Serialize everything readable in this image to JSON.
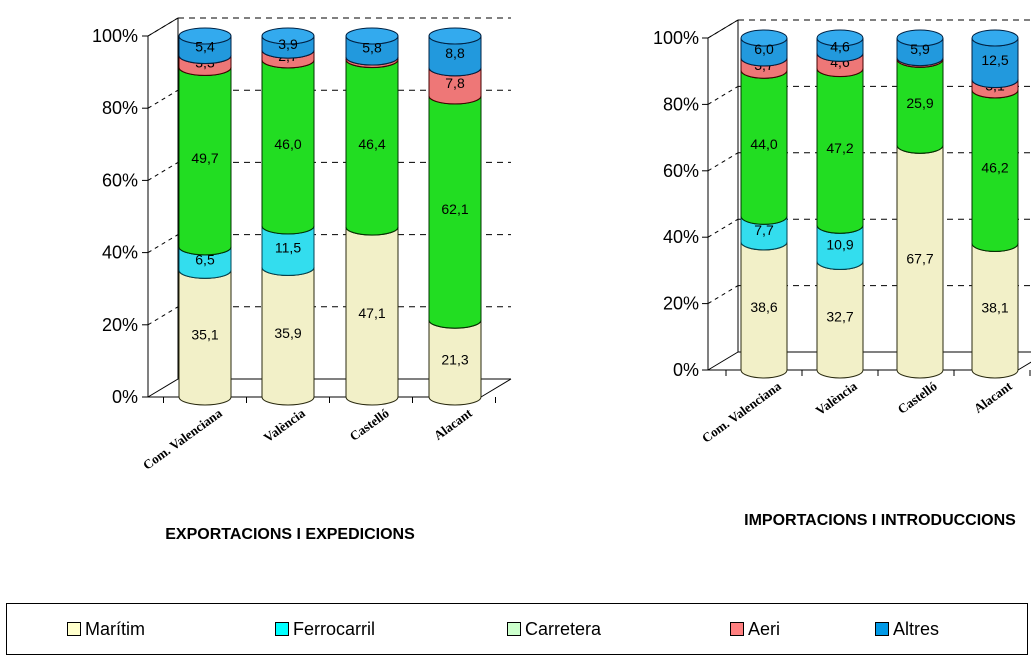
{
  "chart_data": [
    {
      "type": "bar",
      "stacked": "percent",
      "title": "EXPORTACIONS I EXPEDICIONS",
      "categories": [
        "Com. Valenciana",
        "València",
        "Castelló",
        "Alacant"
      ],
      "ylim": [
        0,
        100
      ],
      "yticks": [
        "0%",
        "20%",
        "40%",
        "60%",
        "80%",
        "100%"
      ],
      "grid": true,
      "series": [
        {
          "name": "Marítim",
          "values": [
            35.1,
            35.9,
            47.1,
            21.3
          ],
          "labels": [
            "35,1",
            "35,9",
            "47,1",
            "21,3"
          ]
        },
        {
          "name": "Ferrocarril",
          "values": [
            6.5,
            11.5,
            0,
            0
          ],
          "labels": [
            "6,5",
            "11,5",
            "",
            ""
          ]
        },
        {
          "name": "Carretera",
          "values": [
            49.7,
            46.0,
            46.4,
            62.1
          ],
          "labels": [
            "49,7",
            "46,0",
            "46,4",
            "62,1"
          ]
        },
        {
          "name": "Aeri",
          "values": [
            3.3,
            2.7,
            0.7,
            7.8
          ],
          "labels": [
            "3,3",
            "2,7",
            "",
            "7,8"
          ]
        },
        {
          "name": "Altres",
          "values": [
            5.4,
            3.9,
            5.8,
            8.8
          ],
          "labels": [
            "5,4",
            "3,9",
            "5,8",
            "8,8"
          ]
        }
      ]
    },
    {
      "type": "bar",
      "stacked": "percent",
      "title": "IMPORTACIONS I INTRODUCCIONS",
      "categories": [
        "Com. Valenciana",
        "València",
        "Castelló",
        "Alacant"
      ],
      "ylim": [
        0,
        100
      ],
      "yticks": [
        "0%",
        "20%",
        "40%",
        "60%",
        "80%",
        "100%"
      ],
      "grid": true,
      "series": [
        {
          "name": "Marítim",
          "values": [
            38.6,
            32.7,
            67.7,
            38.1
          ],
          "labels": [
            "38,6",
            "32,7",
            "67,7",
            "38,1"
          ]
        },
        {
          "name": "Ferrocarril",
          "values": [
            7.7,
            10.9,
            0,
            0
          ],
          "labels": [
            "7,7",
            "10,9",
            "",
            ""
          ]
        },
        {
          "name": "Carretera",
          "values": [
            44.0,
            47.2,
            25.9,
            46.2
          ],
          "labels": [
            "44,0",
            "47,2",
            "25,9",
            "46,2"
          ]
        },
        {
          "name": "Aeri",
          "values": [
            3.7,
            4.6,
            0.5,
            3.1
          ],
          "labels": [
            "3,7",
            "4,6",
            "",
            "3,1"
          ]
        },
        {
          "name": "Altres",
          "values": [
            6.0,
            4.6,
            5.9,
            12.5
          ],
          "labels": [
            "6,0",
            "4,6",
            "5,9",
            "12,5"
          ]
        }
      ]
    }
  ],
  "legend": {
    "placement": "bottom",
    "items": [
      {
        "label": "Marítim",
        "color": "#ffffcc"
      },
      {
        "label": "Ferrocarril",
        "color": "#00ffff"
      },
      {
        "label": "Carretera",
        "color": "#ccffcc"
      },
      {
        "label": "Aeri",
        "color": "#ff8080"
      },
      {
        "label": "Altres",
        "color": "#0099e6"
      }
    ]
  },
  "colors": {
    "Marítim": {
      "side": "#f2f0c8",
      "top": "#fbfae0",
      "edge": "#2a2a10"
    },
    "Ferrocarril": {
      "side": "#33ddee",
      "top": "#66f0ff",
      "edge": "#004455"
    },
    "Carretera": {
      "side": "#22dd22",
      "top": "#44ee44",
      "edge": "#003300"
    },
    "Aeri": {
      "side": "#ee7777",
      "top": "#ff9999",
      "edge": "#440000"
    },
    "Altres": {
      "side": "#2299dd",
      "top": "#33aaee",
      "edge": "#002244"
    }
  }
}
